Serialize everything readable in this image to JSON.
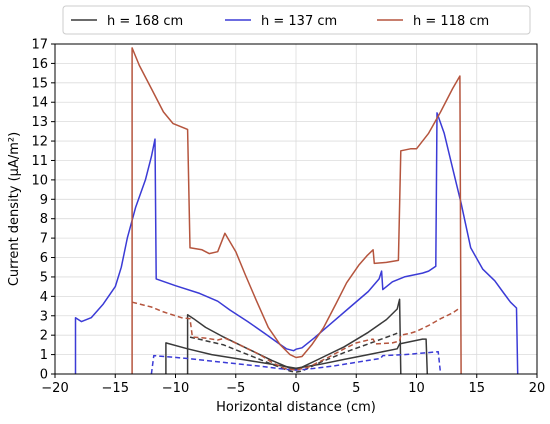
{
  "chart_data": {
    "type": "line",
    "xlabel": "Horizontal distance (cm)",
    "ylabel": "Current density (μA/m²)",
    "xlim": [
      -20,
      20
    ],
    "ylim": [
      0,
      17
    ],
    "xticks": [
      -20,
      -15,
      -10,
      -5,
      0,
      5,
      10,
      15,
      20
    ],
    "yticks": [
      0,
      1,
      2,
      3,
      4,
      5,
      6,
      7,
      8,
      9,
      10,
      11,
      12,
      13,
      14,
      15,
      16,
      17
    ],
    "grid": true,
    "legend_position": "top (outside plot, above axes)",
    "legend": [
      "h = 168 cm",
      "h = 137 cm",
      "h = 118 cm"
    ],
    "series": [
      {
        "name": "h = 168 cm",
        "color": "#3a3a3a",
        "style": "solid",
        "points": [
          [
            -9.0,
            0.0
          ],
          [
            -9.0,
            3.05
          ],
          [
            -8.5,
            2.85
          ],
          [
            -7.5,
            2.4
          ],
          [
            -6.0,
            1.9
          ],
          [
            -4.0,
            1.3
          ],
          [
            -2.0,
            0.7
          ],
          [
            -0.5,
            0.3
          ],
          [
            0.0,
            0.25
          ],
          [
            0.5,
            0.35
          ],
          [
            2.0,
            0.8
          ],
          [
            4.0,
            1.4
          ],
          [
            6.0,
            2.15
          ],
          [
            7.5,
            2.8
          ],
          [
            8.4,
            3.35
          ],
          [
            8.6,
            3.85
          ],
          [
            8.7,
            0.0
          ]
        ]
      },
      {
        "name": "h = 168 cm (inner)",
        "color": "#3a3a3a",
        "style": "solid",
        "points": [
          [
            -10.8,
            0.0
          ],
          [
            -10.8,
            1.6
          ],
          [
            -9.0,
            1.3
          ],
          [
            -7.0,
            1.0
          ],
          [
            -4.0,
            0.7
          ],
          [
            -2.0,
            0.5
          ],
          [
            0.0,
            0.3
          ],
          [
            2.0,
            0.5
          ],
          [
            4.0,
            0.75
          ],
          [
            6.0,
            1.0
          ],
          [
            8.4,
            1.3
          ],
          [
            8.6,
            1.55
          ],
          [
            10.5,
            1.8
          ],
          [
            10.8,
            1.8
          ],
          [
            10.9,
            0.0
          ]
        ]
      },
      {
        "name": "h = 168 cm (dashed)",
        "color": "#3a3a3a",
        "style": "dashed",
        "points": [
          [
            -8.8,
            1.9
          ],
          [
            -6.0,
            1.5
          ],
          [
            -4.0,
            1.0
          ],
          [
            -2.0,
            0.5
          ],
          [
            -0.5,
            0.15
          ],
          [
            0.0,
            0.1
          ],
          [
            0.5,
            0.15
          ],
          [
            2.0,
            0.6
          ],
          [
            4.0,
            1.1
          ],
          [
            6.0,
            1.55
          ],
          [
            8.2,
            2.05
          ],
          [
            8.4,
            2.1
          ]
        ]
      },
      {
        "name": "h = 137 cm",
        "color": "#3b3bd6",
        "style": "solid",
        "points": [
          [
            -18.3,
            0.0
          ],
          [
            -18.3,
            2.9
          ],
          [
            -17.8,
            2.7
          ],
          [
            -17.0,
            2.9
          ],
          [
            -16.0,
            3.6
          ],
          [
            -15.0,
            4.5
          ],
          [
            -14.5,
            5.5
          ],
          [
            -14.0,
            7.0
          ],
          [
            -13.3,
            8.6
          ],
          [
            -12.5,
            10.0
          ],
          [
            -12.0,
            11.2
          ],
          [
            -11.7,
            12.1
          ],
          [
            -11.6,
            4.9
          ],
          [
            -10.0,
            4.55
          ],
          [
            -8.0,
            4.15
          ],
          [
            -6.5,
            3.75
          ],
          [
            -5.5,
            3.3
          ],
          [
            -4.0,
            2.7
          ],
          [
            -2.5,
            2.05
          ],
          [
            -1.5,
            1.6
          ],
          [
            -0.8,
            1.3
          ],
          [
            -0.2,
            1.2
          ],
          [
            0.0,
            1.28
          ],
          [
            0.5,
            1.35
          ],
          [
            1.5,
            1.85
          ],
          [
            3.0,
            2.65
          ],
          [
            4.5,
            3.45
          ],
          [
            6.0,
            4.25
          ],
          [
            6.9,
            4.9
          ],
          [
            7.1,
            5.3
          ],
          [
            7.2,
            4.35
          ],
          [
            8.0,
            4.75
          ],
          [
            9.0,
            5.0
          ],
          [
            10.5,
            5.2
          ],
          [
            11.0,
            5.3
          ],
          [
            11.6,
            5.55
          ],
          [
            11.7,
            13.45
          ],
          [
            12.3,
            12.4
          ],
          [
            13.0,
            10.6
          ],
          [
            13.7,
            8.8
          ],
          [
            14.5,
            6.5
          ],
          [
            15.5,
            5.4
          ],
          [
            16.5,
            4.8
          ],
          [
            17.2,
            4.2
          ],
          [
            17.8,
            3.7
          ],
          [
            18.3,
            3.4
          ],
          [
            18.4,
            0.0
          ]
        ]
      },
      {
        "name": "h = 137 cm (dashed)",
        "color": "#3b3bd6",
        "style": "dashed",
        "points": [
          [
            -12.0,
            0.0
          ],
          [
            -11.8,
            0.95
          ],
          [
            -9.0,
            0.8
          ],
          [
            -6.0,
            0.6
          ],
          [
            -3.0,
            0.4
          ],
          [
            -1.0,
            0.25
          ],
          [
            0.0,
            0.2
          ],
          [
            1.0,
            0.25
          ],
          [
            3.0,
            0.4
          ],
          [
            6.0,
            0.7
          ],
          [
            7.0,
            0.8
          ],
          [
            7.2,
            0.95
          ],
          [
            9.0,
            1.0
          ],
          [
            11.0,
            1.1
          ],
          [
            11.8,
            1.15
          ],
          [
            12.0,
            0.0
          ]
        ]
      },
      {
        "name": "h = 118 cm",
        "color": "#b5553e",
        "style": "solid",
        "points": [
          [
            -13.6,
            0.0
          ],
          [
            -13.6,
            16.8
          ],
          [
            -13.0,
            15.9
          ],
          [
            -12.0,
            14.7
          ],
          [
            -11.0,
            13.5
          ],
          [
            -10.2,
            12.9
          ],
          [
            -9.0,
            12.6
          ],
          [
            -8.8,
            6.5
          ],
          [
            -7.8,
            6.4
          ],
          [
            -7.2,
            6.2
          ],
          [
            -6.5,
            6.3
          ],
          [
            -5.9,
            7.25
          ],
          [
            -5.0,
            6.3
          ],
          [
            -4.2,
            5.1
          ],
          [
            -3.3,
            3.8
          ],
          [
            -2.3,
            2.4
          ],
          [
            -1.3,
            1.5
          ],
          [
            -0.5,
            1.0
          ],
          [
            0.0,
            0.85
          ],
          [
            0.5,
            0.9
          ],
          [
            1.3,
            1.5
          ],
          [
            2.3,
            2.4
          ],
          [
            3.3,
            3.6
          ],
          [
            4.2,
            4.7
          ],
          [
            5.2,
            5.6
          ],
          [
            5.9,
            6.1
          ],
          [
            6.4,
            6.4
          ],
          [
            6.5,
            5.7
          ],
          [
            7.5,
            5.75
          ],
          [
            8.5,
            5.85
          ],
          [
            8.7,
            11.5
          ],
          [
            9.5,
            11.6
          ],
          [
            10.0,
            11.6
          ],
          [
            11.0,
            12.4
          ],
          [
            12.0,
            13.5
          ],
          [
            13.0,
            14.7
          ],
          [
            13.6,
            15.35
          ],
          [
            13.7,
            0.0
          ]
        ]
      },
      {
        "name": "h = 118 cm (dashed)",
        "color": "#b5553e",
        "style": "dashed",
        "points": [
          [
            -13.6,
            3.7
          ],
          [
            -12.0,
            3.45
          ],
          [
            -11.0,
            3.2
          ],
          [
            -9.5,
            2.9
          ],
          [
            -8.8,
            2.85
          ],
          [
            -8.6,
            1.9
          ],
          [
            -7.5,
            1.85
          ],
          [
            -6.5,
            1.75
          ],
          [
            -5.9,
            1.85
          ],
          [
            -4.5,
            1.45
          ],
          [
            -3.0,
            1.0
          ],
          [
            -2.0,
            0.6
          ],
          [
            -1.0,
            0.3
          ],
          [
            0.0,
            0.2
          ],
          [
            1.0,
            0.35
          ],
          [
            2.5,
            0.8
          ],
          [
            4.0,
            1.3
          ],
          [
            5.0,
            1.6
          ],
          [
            6.0,
            1.75
          ],
          [
            6.4,
            1.8
          ],
          [
            6.6,
            1.55
          ],
          [
            8.0,
            1.6
          ],
          [
            8.6,
            1.7
          ],
          [
            8.7,
            2.0
          ],
          [
            9.5,
            2.1
          ],
          [
            10.0,
            2.2
          ],
          [
            11.0,
            2.5
          ],
          [
            12.0,
            2.85
          ],
          [
            13.0,
            3.15
          ],
          [
            13.6,
            3.4
          ]
        ]
      }
    ]
  }
}
